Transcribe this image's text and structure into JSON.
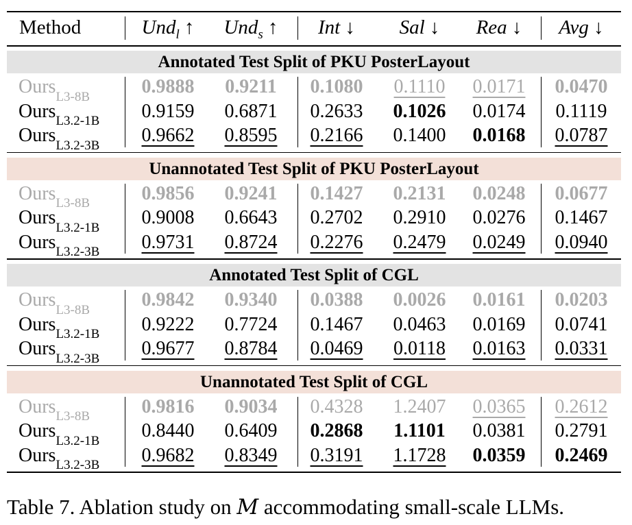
{
  "header": {
    "method": "Method",
    "cols": [
      {
        "base": "Und",
        "sub": "l",
        "arrow": "↑"
      },
      {
        "base": "Und",
        "sub": "s",
        "arrow": "↑"
      },
      {
        "base": "Int",
        "sub": "",
        "arrow": "↓"
      },
      {
        "base": "Sal",
        "sub": "",
        "arrow": "↓"
      },
      {
        "base": "Rea",
        "sub": "",
        "arrow": "↓"
      },
      {
        "base": "Avg",
        "sub": "",
        "arrow": "↓"
      }
    ]
  },
  "sections": [
    {
      "title": "Annotated Test Split of PKU PosterLayout",
      "shade": "gray",
      "rows": [
        {
          "name": "Ours",
          "sub": "L3-8B",
          "muted": true,
          "vals": [
            "0.9888",
            "0.9211",
            "0.1080",
            "0.1110",
            "0.0171",
            "0.0470"
          ],
          "bold": [
            true,
            true,
            true,
            false,
            false,
            true
          ],
          "under": [
            false,
            false,
            false,
            true,
            true,
            false
          ]
        },
        {
          "name": "Ours",
          "sub": "L3.2-1B",
          "muted": false,
          "vals": [
            "0.9159",
            "0.6871",
            "0.2633",
            "0.1026",
            "0.0174",
            "0.1119"
          ],
          "bold": [
            false,
            false,
            false,
            true,
            false,
            false
          ],
          "under": [
            false,
            false,
            false,
            false,
            false,
            false
          ]
        },
        {
          "name": "Ours",
          "sub": "L3.2-3B",
          "muted": false,
          "vals": [
            "0.9662",
            "0.8595",
            "0.2166",
            "0.1400",
            "0.0168",
            "0.0787"
          ],
          "bold": [
            false,
            false,
            false,
            false,
            true,
            false
          ],
          "under": [
            true,
            true,
            true,
            false,
            false,
            true
          ]
        }
      ]
    },
    {
      "title": "Unannotated Test Split of PKU PosterLayout",
      "shade": "pink",
      "rows": [
        {
          "name": "Ours",
          "sub": "L3-8B",
          "muted": true,
          "vals": [
            "0.9856",
            "0.9241",
            "0.1427",
            "0.2131",
            "0.0248",
            "0.0677"
          ],
          "bold": [
            true,
            true,
            true,
            true,
            true,
            true
          ],
          "under": [
            false,
            false,
            false,
            false,
            false,
            false
          ]
        },
        {
          "name": "Ours",
          "sub": "L3.2-1B",
          "muted": false,
          "vals": [
            "0.9008",
            "0.6643",
            "0.2702",
            "0.2910",
            "0.0276",
            "0.1467"
          ],
          "bold": [
            false,
            false,
            false,
            false,
            false,
            false
          ],
          "under": [
            false,
            false,
            false,
            false,
            false,
            false
          ]
        },
        {
          "name": "Ours",
          "sub": "L3.2-3B",
          "muted": false,
          "vals": [
            "0.9731",
            "0.8724",
            "0.2276",
            "0.2479",
            "0.0249",
            "0.0940"
          ],
          "bold": [
            false,
            false,
            false,
            false,
            false,
            false
          ],
          "under": [
            true,
            true,
            true,
            true,
            true,
            true
          ]
        }
      ]
    },
    {
      "title": "Annotated Test Split of CGL",
      "shade": "gray",
      "rows": [
        {
          "name": "Ours",
          "sub": "L3-8B",
          "muted": true,
          "vals": [
            "0.9842",
            "0.9340",
            "0.0388",
            "0.0026",
            "0.0161",
            "0.0203"
          ],
          "bold": [
            true,
            true,
            true,
            true,
            true,
            true
          ],
          "under": [
            false,
            false,
            false,
            false,
            false,
            false
          ]
        },
        {
          "name": "Ours",
          "sub": "L3.2-1B",
          "muted": false,
          "vals": [
            "0.9222",
            "0.7724",
            "0.1467",
            "0.0463",
            "0.0169",
            "0.0741"
          ],
          "bold": [
            false,
            false,
            false,
            false,
            false,
            false
          ],
          "under": [
            false,
            false,
            false,
            false,
            false,
            false
          ]
        },
        {
          "name": "Ours",
          "sub": "L3.2-3B",
          "muted": false,
          "vals": [
            "0.9677",
            "0.8784",
            "0.0469",
            "0.0118",
            "0.0163",
            "0.0331"
          ],
          "bold": [
            false,
            false,
            false,
            false,
            false,
            false
          ],
          "under": [
            true,
            true,
            true,
            true,
            true,
            true
          ]
        }
      ]
    },
    {
      "title": "Unannotated Test Split of CGL",
      "shade": "pink",
      "rows": [
        {
          "name": "Ours",
          "sub": "L3-8B",
          "muted": true,
          "vals": [
            "0.9816",
            "0.9034",
            "0.4328",
            "1.2407",
            "0.0365",
            "0.2612"
          ],
          "bold": [
            true,
            true,
            false,
            false,
            false,
            false
          ],
          "under": [
            false,
            false,
            false,
            false,
            true,
            true
          ]
        },
        {
          "name": "Ours",
          "sub": "L3.2-1B",
          "muted": false,
          "vals": [
            "0.8440",
            "0.6409",
            "0.2868",
            "1.1101",
            "0.0381",
            "0.2791"
          ],
          "bold": [
            false,
            false,
            true,
            true,
            false,
            false
          ],
          "under": [
            false,
            false,
            false,
            false,
            false,
            false
          ]
        },
        {
          "name": "Ours",
          "sub": "L3.2-3B",
          "muted": false,
          "vals": [
            "0.9682",
            "0.8349",
            "0.3191",
            "1.1728",
            "0.0359",
            "0.2469"
          ],
          "bold": [
            false,
            false,
            false,
            false,
            true,
            true
          ],
          "under": [
            true,
            true,
            true,
            true,
            false,
            false
          ]
        }
      ]
    }
  ],
  "caption": {
    "prefix": "Table 7. Ablation study on ",
    "symbol": "M",
    "suffix": " accommodating small-scale LLMs."
  }
}
